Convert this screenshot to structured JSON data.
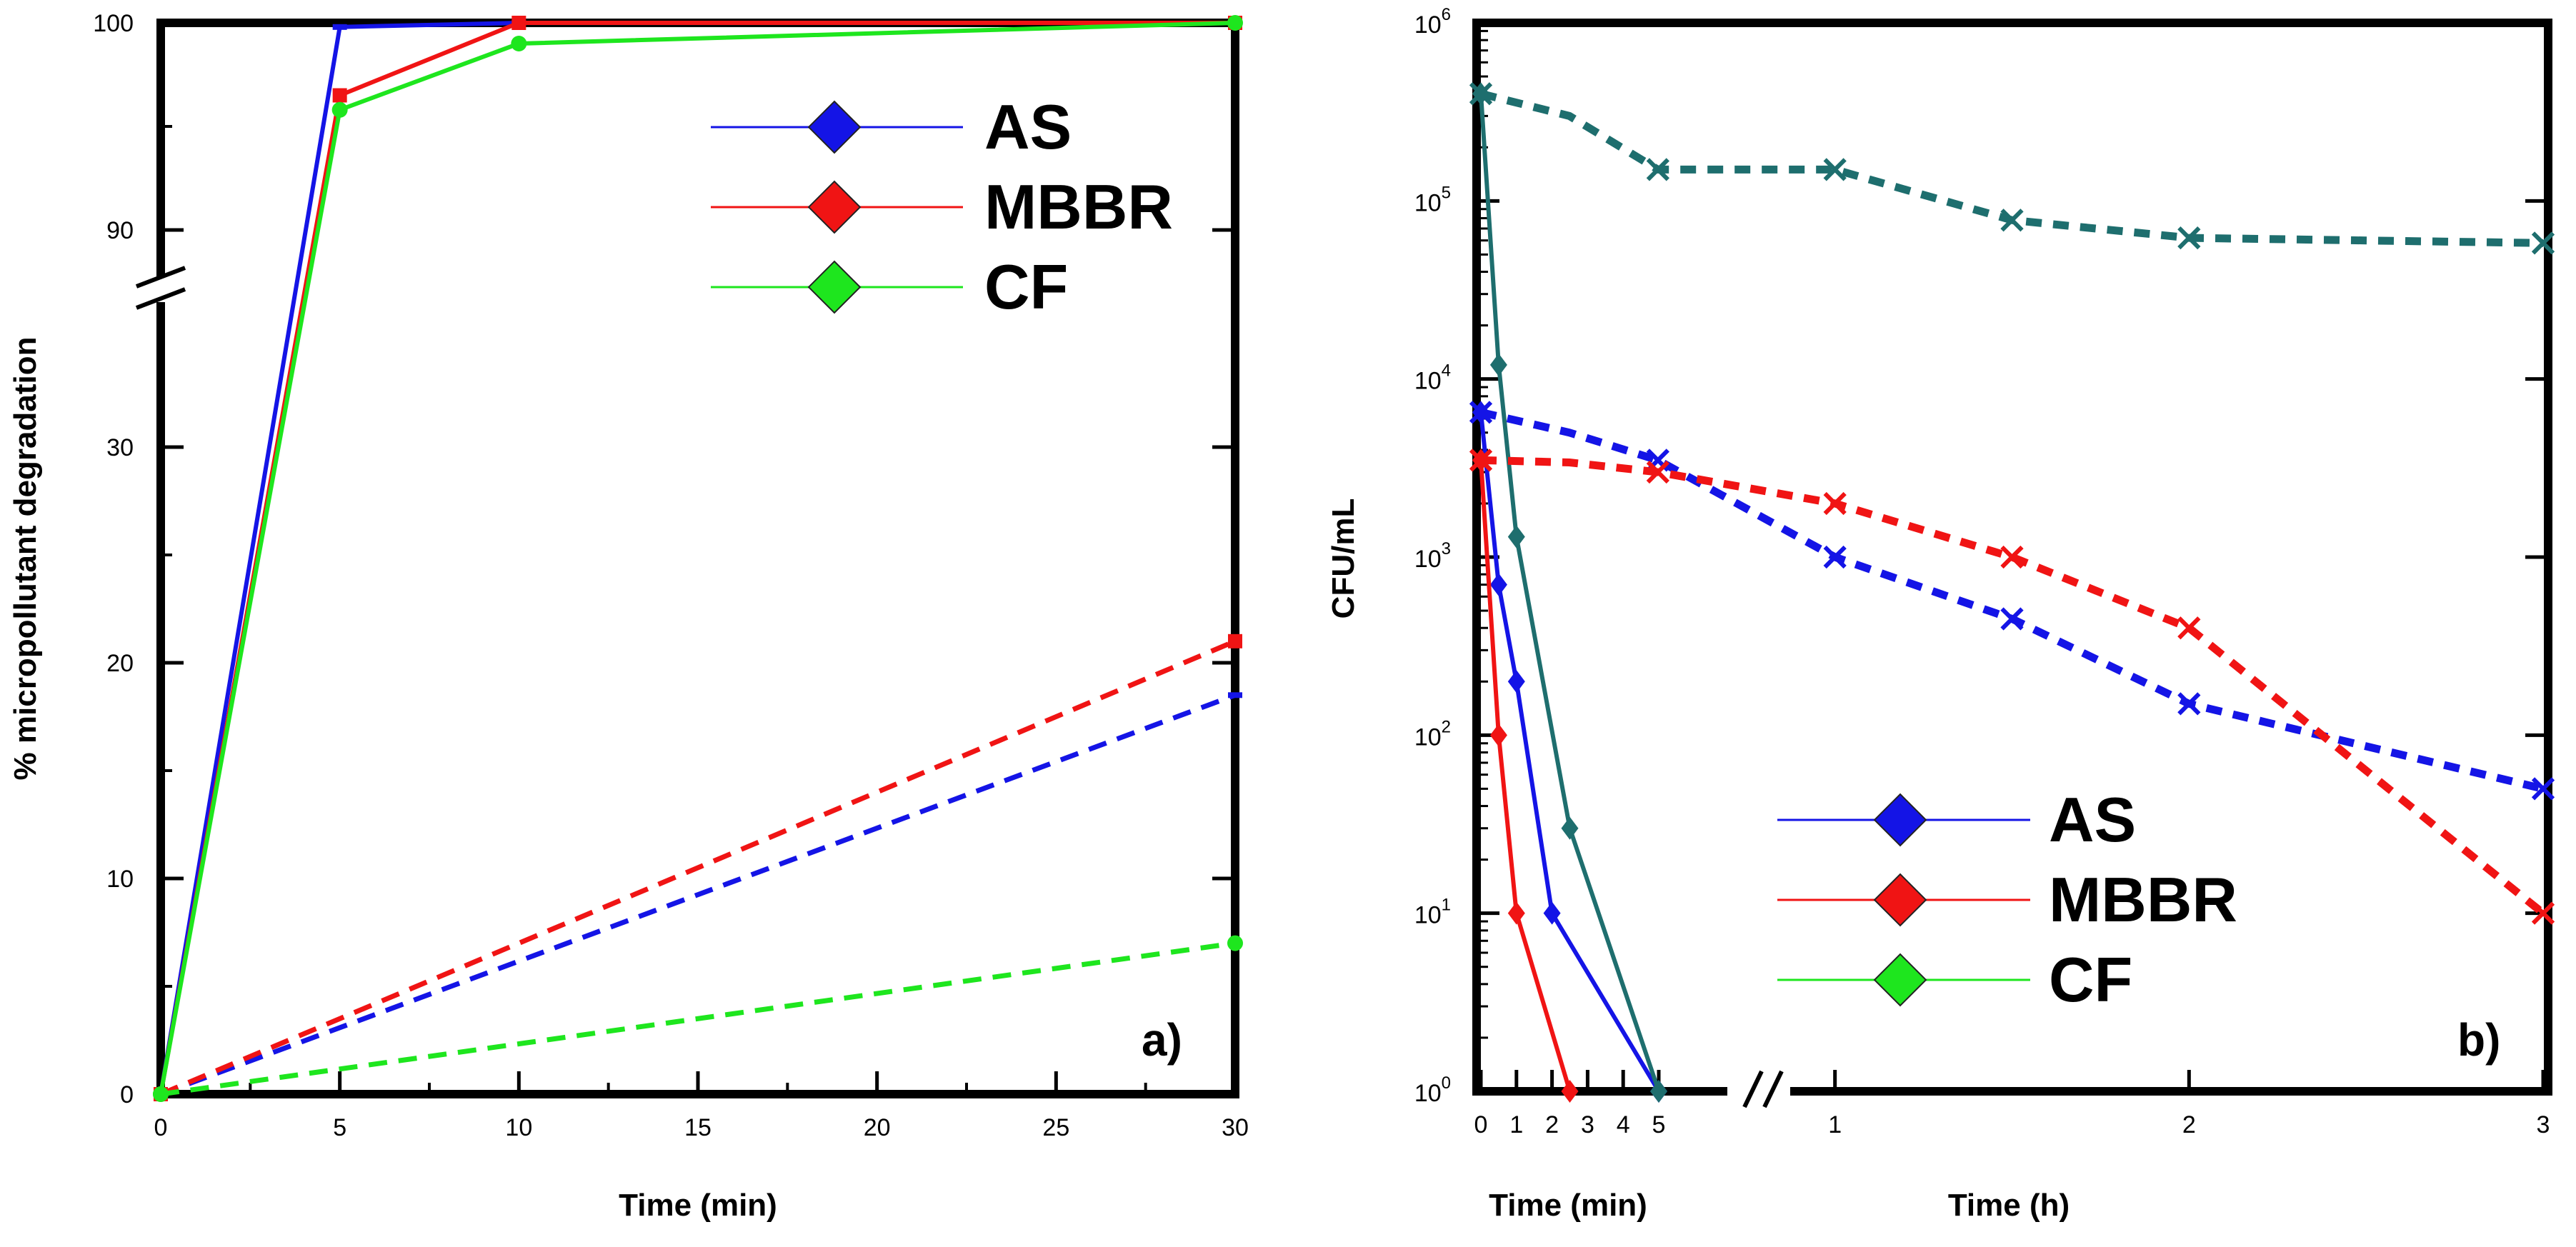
{
  "colors": {
    "AS": "#1414e6",
    "MBBR": "#f01414",
    "CF": "#1ee61e",
    "CF_b": "#1e6e6e"
  },
  "chart_data": [
    {
      "type": "line",
      "panel": "a)",
      "xlabel": "Time (min)",
      "ylabel": "% micropollutant degradation",
      "xlim": [
        0,
        30
      ],
      "x_ticks": [
        "0",
        "5",
        "10",
        "15",
        "20",
        "25",
        "30"
      ],
      "y_ticks": [
        "0",
        "10",
        "20",
        "30",
        "90",
        "100"
      ],
      "axis_break": "y between 30 and 90",
      "legend": [
        "AS",
        "MBBR",
        "CF"
      ],
      "series": [
        {
          "name": "AS",
          "style": "solid",
          "x": [
            0,
            5,
            10,
            30
          ],
          "y": [
            0,
            99.8,
            100,
            100
          ]
        },
        {
          "name": "MBBR",
          "style": "solid",
          "x": [
            0,
            5,
            10,
            30
          ],
          "y": [
            0,
            96.5,
            100,
            100
          ]
        },
        {
          "name": "CF",
          "style": "solid",
          "x": [
            0,
            5,
            10,
            30
          ],
          "y": [
            0,
            95.8,
            99,
            100
          ]
        },
        {
          "name": "AS",
          "style": "dashed",
          "x": [
            0,
            30
          ],
          "y": [
            0,
            18.5
          ]
        },
        {
          "name": "MBBR",
          "style": "dashed",
          "x": [
            0,
            30
          ],
          "y": [
            0,
            21
          ]
        },
        {
          "name": "CF",
          "style": "dashed",
          "x": [
            0,
            30
          ],
          "y": [
            0,
            7
          ]
        }
      ]
    },
    {
      "type": "line",
      "panel": "b)",
      "ylabel": "CFU/mL",
      "yscale": "log",
      "ylim": [
        1,
        1000000
      ],
      "y_ticks": [
        "10",
        "10",
        "10",
        "10",
        "10",
        "10",
        "10"
      ],
      "y_tick_exponents": [
        "0",
        "1",
        "2",
        "3",
        "4",
        "5",
        "6"
      ],
      "x_segments": [
        {
          "label": "Time (min)",
          "range": [
            0,
            5
          ],
          "ticks": [
            "0",
            "1",
            "2",
            "3",
            "4",
            "5"
          ]
        },
        {
          "label": "Time (h)",
          "range": [
            0,
            3
          ],
          "ticks": [
            "1",
            "2",
            "3"
          ]
        }
      ],
      "axis_break": "x between 5 min and ~0.7 h",
      "legend": [
        "AS",
        "MBBR",
        "CF"
      ],
      "series": [
        {
          "name": "AS",
          "style": "solid",
          "unit": "min",
          "x": [
            0,
            0.5,
            1,
            2,
            5
          ],
          "y": [
            6500,
            700,
            200,
            10,
            1
          ]
        },
        {
          "name": "MBBR",
          "style": "solid",
          "unit": "min",
          "x": [
            0,
            0.5,
            1,
            2.5
          ],
          "y": [
            3500,
            100,
            10,
            1
          ]
        },
        {
          "name": "CF",
          "style": "solid",
          "unit": "min",
          "x": [
            0,
            0.5,
            1,
            2.5,
            5
          ],
          "y": [
            400000,
            12000,
            1300,
            30,
            1
          ]
        },
        {
          "name": "AS",
          "style": "dashed",
          "unit": "h",
          "x": [
            0,
            0.25,
            0.5,
            1,
            1.5,
            2,
            3
          ],
          "y": [
            6500,
            5000,
            3500,
            1000,
            450,
            150,
            50
          ]
        },
        {
          "name": "MBBR",
          "style": "dashed",
          "unit": "h",
          "x": [
            0,
            0.25,
            0.5,
            1,
            1.5,
            2,
            3
          ],
          "y": [
            3500,
            3400,
            3000,
            2000,
            1000,
            400,
            10
          ]
        },
        {
          "name": "CF",
          "style": "dashed",
          "unit": "h",
          "x": [
            0,
            0.25,
            0.5,
            1,
            1.5,
            2,
            3
          ],
          "y": [
            400000,
            300000,
            150000,
            150000,
            78000,
            62000,
            58000
          ]
        }
      ]
    }
  ]
}
